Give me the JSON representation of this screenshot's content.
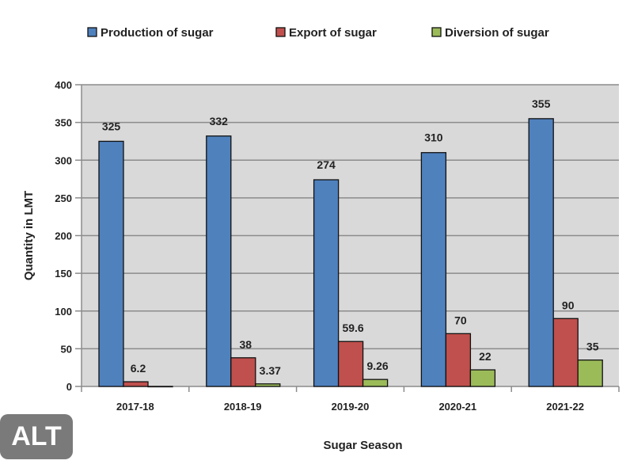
{
  "chart_data": {
    "type": "bar",
    "title": "",
    "xlabel": "Sugar Season",
    "ylabel": "Quantity in LMT",
    "ylim": [
      0,
      400
    ],
    "yticks": [
      0,
      50,
      100,
      150,
      200,
      250,
      300,
      350,
      400
    ],
    "grid": true,
    "legend_position": "top",
    "categories": [
      "2017-18",
      "2018-19",
      "2019-20",
      "2020-21",
      "2021-22"
    ],
    "series": [
      {
        "name": "Production of sugar",
        "color": "#4f81bd",
        "values": [
          325,
          332,
          274,
          310,
          355
        ],
        "labels": [
          "325",
          "332",
          "274",
          "310",
          "355"
        ]
      },
      {
        "name": "Export of sugar",
        "color": "#c0504d",
        "values": [
          6.2,
          38,
          59.6,
          70,
          90
        ],
        "labels": [
          "6.2",
          "38",
          "59.6",
          "70",
          "90"
        ]
      },
      {
        "name": "Diversion of sugar",
        "color": "#9bbb59",
        "values": [
          0,
          3.37,
          9.26,
          22,
          35
        ],
        "labels": [
          "",
          "3.37",
          "9.26",
          "22",
          "35"
        ]
      }
    ]
  },
  "badge": {
    "label": "ALT"
  }
}
